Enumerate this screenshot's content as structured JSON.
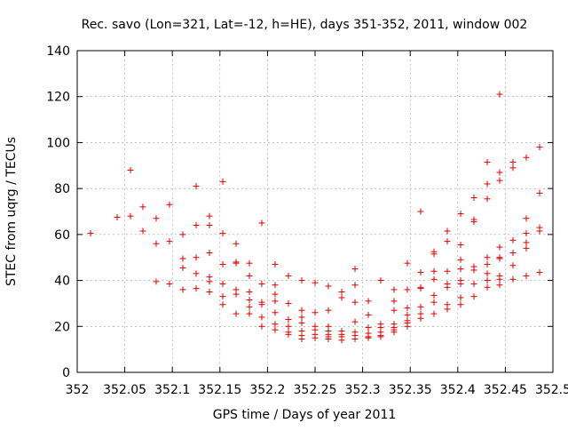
{
  "chart_data": {
    "type": "scatter",
    "title": "Rec. savo (Lon=321, Lat=-12, h=HE), days 351-352, 2011, window 002",
    "xlabel": "GPS time / Days of year 2011",
    "ylabel": "STEC from uqrg / TECUs",
    "xlim": [
      352,
      352.5
    ],
    "ylim": [
      0,
      140
    ],
    "xticks": [
      "352",
      "352.05",
      "352.1",
      "352.15",
      "352.2",
      "352.25",
      "352.3",
      "352.35",
      "352.4",
      "352.45",
      "352.5"
    ],
    "yticks": [
      "0",
      "20",
      "40",
      "60",
      "80",
      "100",
      "120",
      "140"
    ],
    "grid": true,
    "marker": "+",
    "color": "#e00000",
    "points": [
      [
        352.014,
        60.5
      ],
      [
        352.042,
        67.5
      ],
      [
        352.056,
        88
      ],
      [
        352.056,
        68
      ],
      [
        352.069,
        72
      ],
      [
        352.069,
        61.5
      ],
      [
        352.083,
        67
      ],
      [
        352.083,
        56
      ],
      [
        352.083,
        39.5
      ],
      [
        352.097,
        73
      ],
      [
        352.097,
        57
      ],
      [
        352.097,
        38.5
      ],
      [
        352.111,
        60
      ],
      [
        352.111,
        49.5
      ],
      [
        352.111,
        45.5
      ],
      [
        352.111,
        36
      ],
      [
        352.125,
        81
      ],
      [
        352.125,
        64
      ],
      [
        352.125,
        50
      ],
      [
        352.125,
        43
      ],
      [
        352.125,
        36.5
      ],
      [
        352.139,
        68
      ],
      [
        352.139,
        64
      ],
      [
        352.139,
        52
      ],
      [
        352.139,
        41.5
      ],
      [
        352.139,
        39.5
      ],
      [
        352.139,
        35
      ],
      [
        352.153,
        83
      ],
      [
        352.153,
        60.5
      ],
      [
        352.153,
        47
      ],
      [
        352.153,
        38.5
      ],
      [
        352.153,
        33
      ],
      [
        352.153,
        29.5
      ],
      [
        352.167,
        56
      ],
      [
        352.167,
        48
      ],
      [
        352.167,
        47.5
      ],
      [
        352.167,
        36
      ],
      [
        352.167,
        34
      ],
      [
        352.167,
        25.5
      ],
      [
        352.181,
        47.5
      ],
      [
        352.181,
        42
      ],
      [
        352.181,
        35
      ],
      [
        352.181,
        31.5
      ],
      [
        352.181,
        28.5
      ],
      [
        352.181,
        25.5
      ],
      [
        352.194,
        65
      ],
      [
        352.194,
        38.5
      ],
      [
        352.194,
        30.5
      ],
      [
        352.194,
        29.5
      ],
      [
        352.194,
        24
      ],
      [
        352.194,
        20
      ],
      [
        352.208,
        47
      ],
      [
        352.208,
        38
      ],
      [
        352.208,
        34
      ],
      [
        352.208,
        31
      ],
      [
        352.208,
        26
      ],
      [
        352.208,
        21
      ],
      [
        352.208,
        18.5
      ],
      [
        352.222,
        42
      ],
      [
        352.222,
        30
      ],
      [
        352.222,
        23
      ],
      [
        352.222,
        20
      ],
      [
        352.222,
        17.5
      ],
      [
        352.222,
        16.5
      ],
      [
        352.236,
        40
      ],
      [
        352.236,
        27
      ],
      [
        352.236,
        24
      ],
      [
        352.236,
        21.5
      ],
      [
        352.236,
        18
      ],
      [
        352.236,
        16
      ],
      [
        352.236,
        14.5
      ],
      [
        352.25,
        39
      ],
      [
        352.25,
        26
      ],
      [
        352.25,
        20
      ],
      [
        352.25,
        18.5
      ],
      [
        352.25,
        16.5
      ],
      [
        352.25,
        15
      ],
      [
        352.264,
        37.5
      ],
      [
        352.264,
        27
      ],
      [
        352.264,
        20
      ],
      [
        352.264,
        18
      ],
      [
        352.264,
        16.5
      ],
      [
        352.264,
        15.5
      ],
      [
        352.264,
        14.5
      ],
      [
        352.278,
        35
      ],
      [
        352.278,
        32.5
      ],
      [
        352.278,
        18
      ],
      [
        352.278,
        16.5
      ],
      [
        352.278,
        15.5
      ],
      [
        352.278,
        14
      ],
      [
        352.292,
        45
      ],
      [
        352.292,
        38
      ],
      [
        352.292,
        30.5
      ],
      [
        352.292,
        22
      ],
      [
        352.292,
        17.5
      ],
      [
        352.292,
        16
      ],
      [
        352.292,
        14.5
      ],
      [
        352.306,
        31
      ],
      [
        352.306,
        25
      ],
      [
        352.306,
        19.5
      ],
      [
        352.306,
        17
      ],
      [
        352.306,
        15.5
      ],
      [
        352.306,
        15
      ],
      [
        352.319,
        40
      ],
      [
        352.319,
        21
      ],
      [
        352.319,
        19.5
      ],
      [
        352.319,
        17.5
      ],
      [
        352.319,
        16
      ],
      [
        352.319,
        15.5
      ],
      [
        352.333,
        36
      ],
      [
        352.333,
        31
      ],
      [
        352.333,
        27
      ],
      [
        352.333,
        21
      ],
      [
        352.333,
        19.5
      ],
      [
        352.333,
        18.5
      ],
      [
        352.333,
        17.5
      ],
      [
        352.347,
        47.5
      ],
      [
        352.347,
        36
      ],
      [
        352.347,
        28
      ],
      [
        352.347,
        25
      ],
      [
        352.347,
        22.5
      ],
      [
        352.347,
        21.5
      ],
      [
        352.347,
        20
      ],
      [
        352.361,
        70
      ],
      [
        352.361,
        43.5
      ],
      [
        352.361,
        37
      ],
      [
        352.361,
        36.5
      ],
      [
        352.361,
        28.5
      ],
      [
        352.361,
        25.5
      ],
      [
        352.361,
        23.5
      ],
      [
        352.375,
        52.5
      ],
      [
        352.375,
        51.5
      ],
      [
        352.375,
        44
      ],
      [
        352.375,
        40.5
      ],
      [
        352.375,
        33.5
      ],
      [
        352.375,
        30.5
      ],
      [
        352.375,
        25.5
      ],
      [
        352.389,
        61.5
      ],
      [
        352.389,
        57
      ],
      [
        352.389,
        44
      ],
      [
        352.389,
        38.5
      ],
      [
        352.389,
        37
      ],
      [
        352.389,
        29.5
      ],
      [
        352.389,
        27.5
      ],
      [
        352.403,
        69
      ],
      [
        352.403,
        55.5
      ],
      [
        352.403,
        49
      ],
      [
        352.403,
        45
      ],
      [
        352.403,
        40
      ],
      [
        352.403,
        38.5
      ],
      [
        352.403,
        32.5
      ],
      [
        352.403,
        29.5
      ],
      [
        352.417,
        76
      ],
      [
        352.417,
        66.5
      ],
      [
        352.417,
        65.5
      ],
      [
        352.417,
        46
      ],
      [
        352.417,
        44.5
      ],
      [
        352.417,
        38.5
      ],
      [
        352.417,
        33
      ],
      [
        352.431,
        91.5
      ],
      [
        352.431,
        82
      ],
      [
        352.431,
        75.5
      ],
      [
        352.431,
        50
      ],
      [
        352.431,
        47
      ],
      [
        352.431,
        43
      ],
      [
        352.431,
        40
      ],
      [
        352.431,
        37
      ],
      [
        352.444,
        121
      ],
      [
        352.444,
        87
      ],
      [
        352.444,
        83.5
      ],
      [
        352.444,
        54.5
      ],
      [
        352.444,
        50
      ],
      [
        352.444,
        49.5
      ],
      [
        352.444,
        42
      ],
      [
        352.444,
        40.5
      ],
      [
        352.444,
        38
      ],
      [
        352.458,
        91.5
      ],
      [
        352.458,
        89
      ],
      [
        352.458,
        57.5
      ],
      [
        352.458,
        52
      ],
      [
        352.458,
        46.5
      ],
      [
        352.458,
        40.5
      ],
      [
        352.472,
        93.5
      ],
      [
        352.472,
        67
      ],
      [
        352.472,
        60.5
      ],
      [
        352.472,
        56.5
      ],
      [
        352.472,
        54
      ],
      [
        352.472,
        42
      ],
      [
        352.486,
        98
      ],
      [
        352.486,
        78
      ],
      [
        352.486,
        63
      ],
      [
        352.486,
        61.5
      ],
      [
        352.486,
        43.5
      ]
    ]
  }
}
